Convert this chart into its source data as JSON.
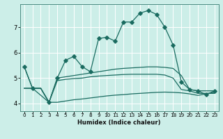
{
  "xlabel": "Humidex (Indice chaleur)",
  "background_color": "#cceee8",
  "line_color": "#1a6b60",
  "grid_color": "#ffffff",
  "xlim": [
    -0.5,
    23.5
  ],
  "ylim": [
    3.7,
    7.9
  ],
  "xticks": [
    0,
    1,
    2,
    3,
    4,
    5,
    6,
    7,
    8,
    9,
    10,
    11,
    12,
    13,
    14,
    15,
    16,
    17,
    18,
    19,
    20,
    21,
    22,
    23
  ],
  "yticks": [
    4,
    5,
    6,
    7
  ],
  "line_main_x": [
    0,
    1,
    3,
    4,
    5,
    6,
    7,
    8,
    9,
    10,
    11,
    12,
    13,
    14,
    15,
    16,
    17,
    18,
    19,
    20,
    21,
    22,
    23
  ],
  "line_main_y": [
    5.45,
    4.6,
    4.05,
    5.0,
    5.7,
    5.85,
    5.45,
    5.25,
    6.55,
    6.6,
    6.45,
    7.2,
    7.2,
    7.55,
    7.65,
    7.5,
    7.0,
    6.3,
    4.85,
    4.55,
    4.5,
    4.35,
    4.5
  ],
  "line_a_x": [
    0,
    1,
    2,
    3,
    4,
    5,
    6,
    7,
    8,
    9,
    10,
    11,
    12,
    13,
    14,
    15,
    16,
    17,
    18,
    19,
    20,
    21,
    22,
    23
  ],
  "line_a_y": [
    5.45,
    4.6,
    4.6,
    4.05,
    5.0,
    5.05,
    5.1,
    5.15,
    5.2,
    5.25,
    5.3,
    5.35,
    5.38,
    5.4,
    5.42,
    5.44,
    5.44,
    5.42,
    5.38,
    5.1,
    4.55,
    4.5,
    4.5,
    4.5
  ],
  "line_b_x": [
    0,
    1,
    2,
    3,
    4,
    5,
    6,
    7,
    8,
    9,
    10,
    11,
    12,
    13,
    14,
    15,
    16,
    17,
    18,
    19,
    20,
    21,
    22,
    23
  ],
  "line_b_y": [
    4.6,
    4.6,
    4.6,
    4.05,
    4.9,
    4.95,
    4.98,
    5.0,
    5.05,
    5.08,
    5.1,
    5.12,
    5.14,
    5.15,
    5.15,
    5.15,
    5.15,
    5.12,
    5.0,
    4.55,
    4.5,
    4.4,
    4.4,
    4.4
  ],
  "line_c_x": [
    0,
    1,
    2,
    3,
    4,
    5,
    6,
    7,
    8,
    9,
    10,
    11,
    12,
    13,
    14,
    15,
    16,
    17,
    18,
    19,
    20,
    21,
    22,
    23
  ],
  "line_c_y": [
    4.6,
    4.6,
    4.6,
    4.05,
    4.05,
    4.1,
    4.15,
    4.18,
    4.22,
    4.26,
    4.3,
    4.33,
    4.35,
    4.38,
    4.4,
    4.42,
    4.44,
    4.45,
    4.44,
    4.42,
    4.38,
    4.32,
    4.38,
    4.44
  ]
}
